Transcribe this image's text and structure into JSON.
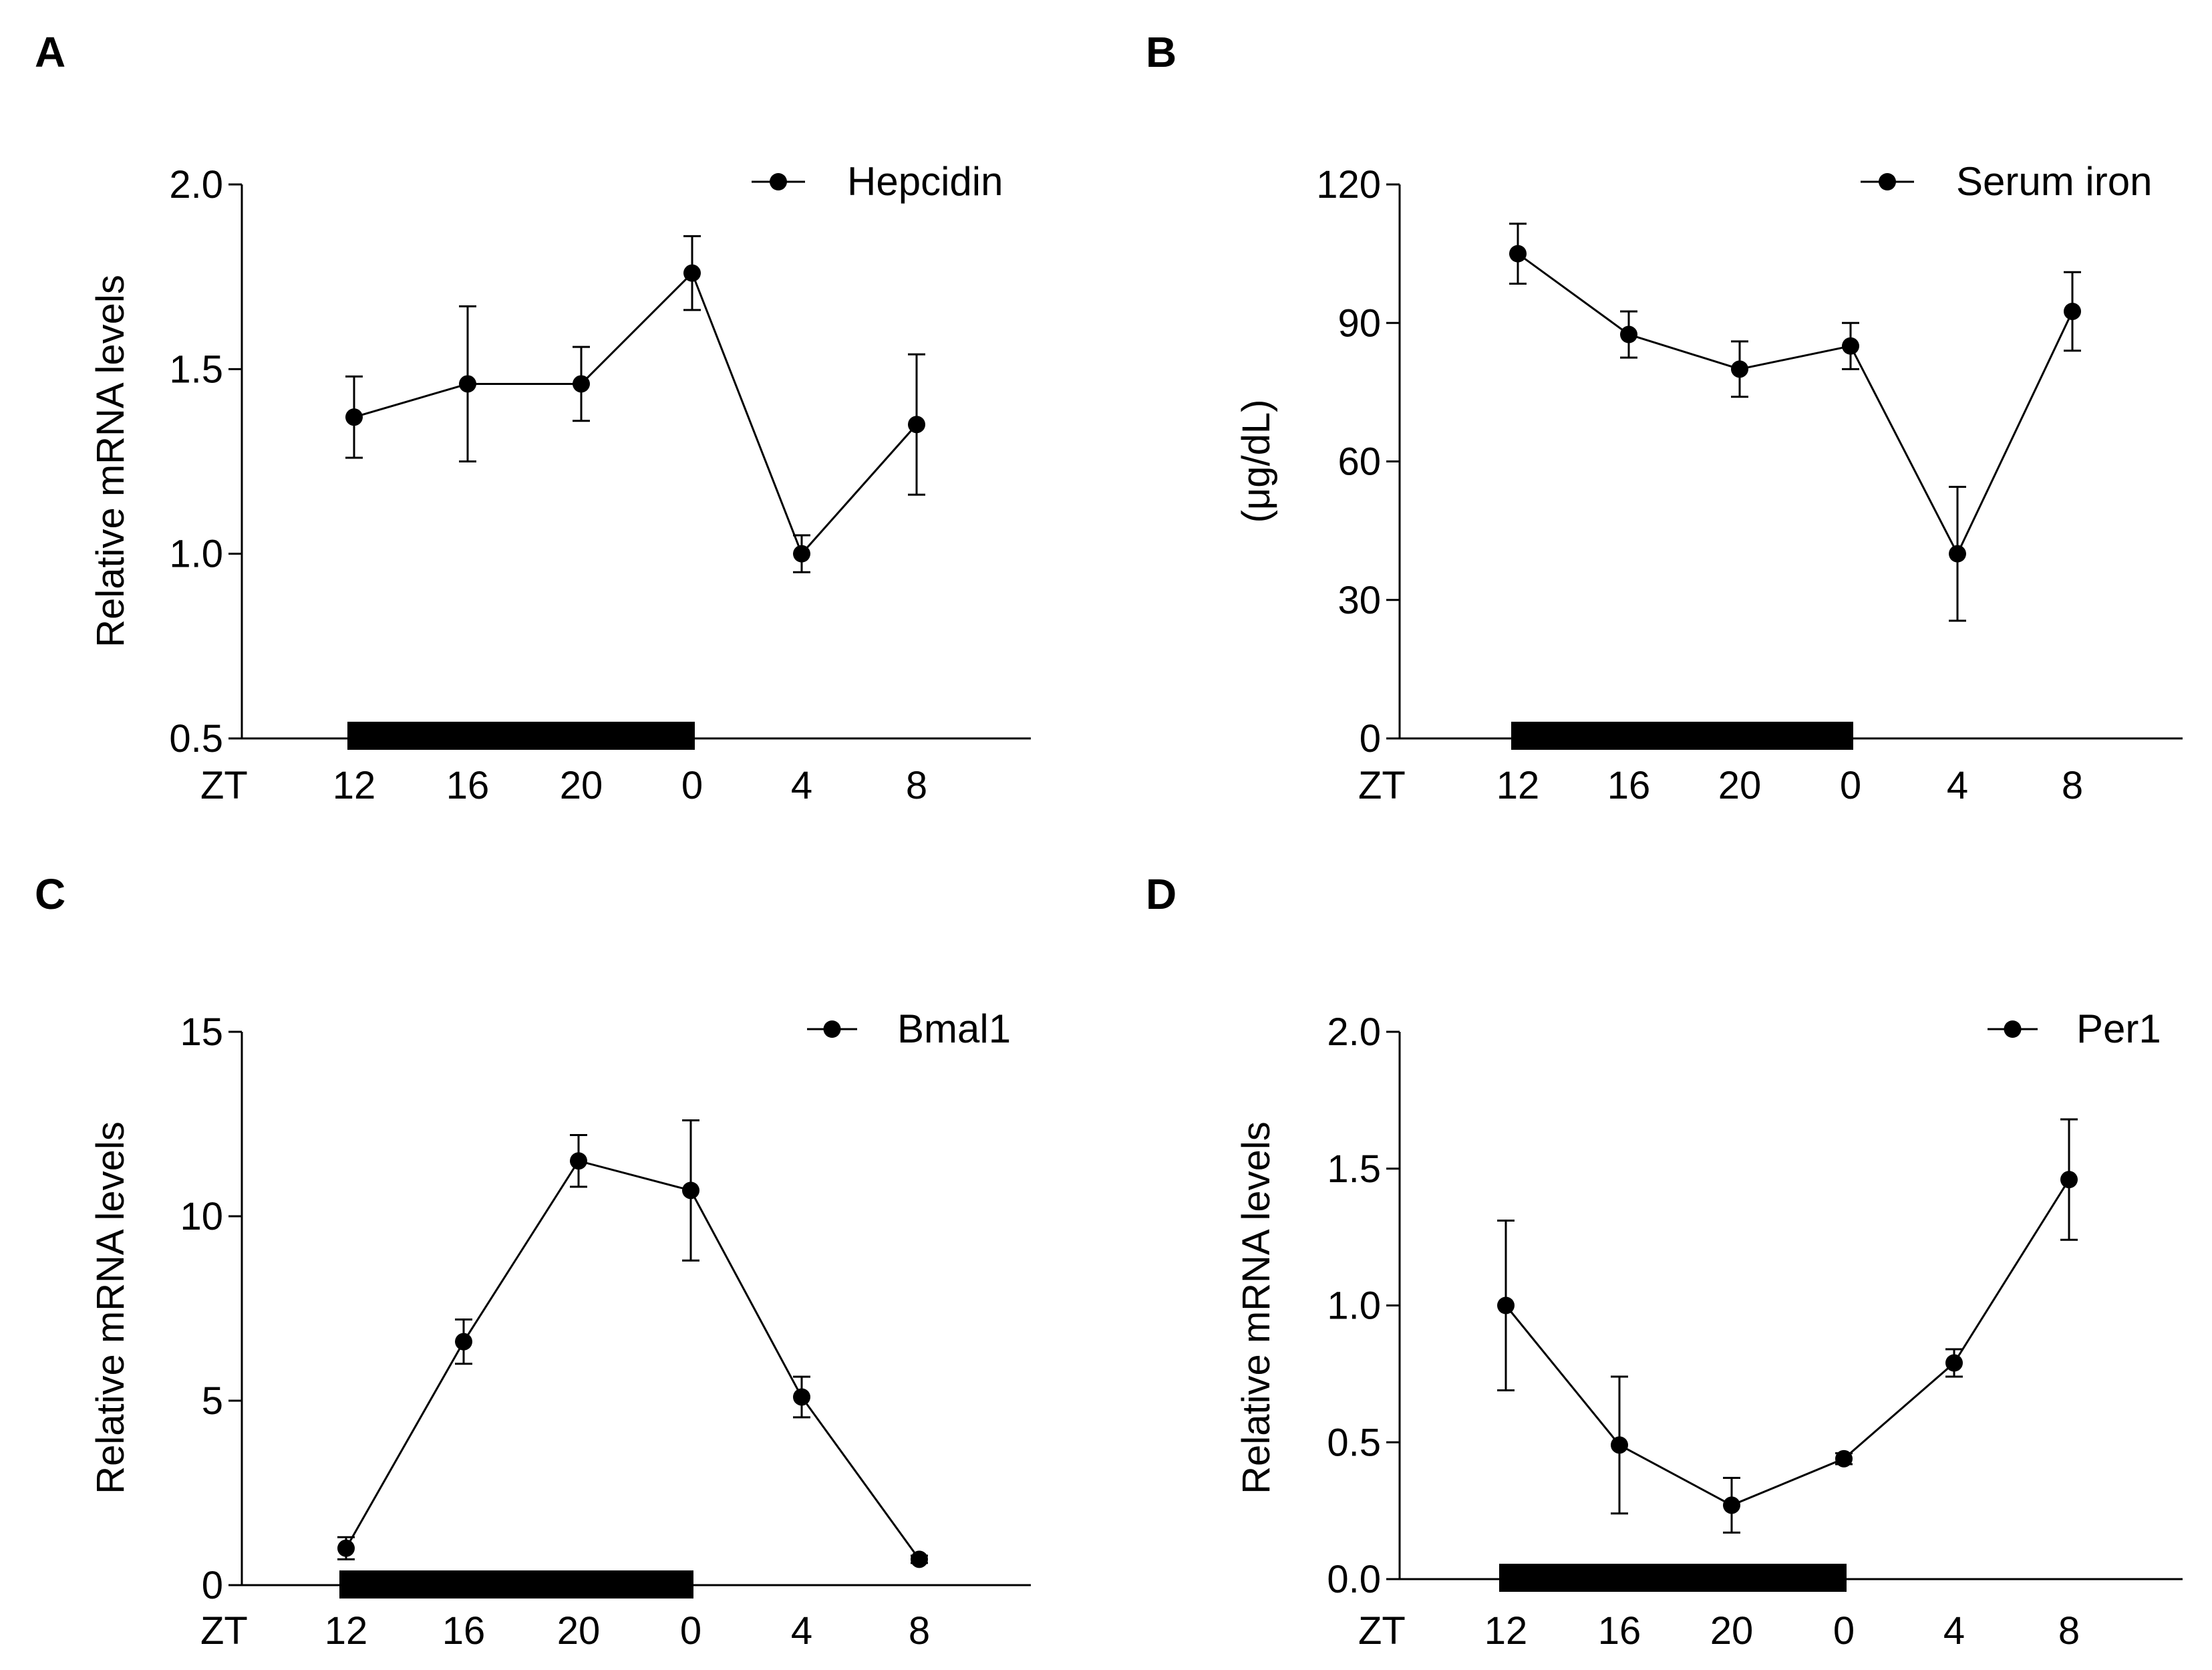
{
  "figure": {
    "zt_label": "ZT",
    "x_categories": [
      "12",
      "16",
      "20",
      "0",
      "4",
      "8"
    ],
    "dark_phase_bar": {
      "from_category": "12",
      "to_category": "0",
      "color": "#000000"
    }
  },
  "chart_data": [
    {
      "panel": "A",
      "type": "line",
      "legend": "Hepcidin",
      "ylabel": "Relative mRNA levels",
      "ylim": [
        0.5,
        2.0
      ],
      "yticks": [
        "0.5",
        "1.0",
        "1.5",
        "2.0"
      ],
      "categories": [
        "12",
        "16",
        "20",
        "0",
        "4",
        "8"
      ],
      "series": [
        {
          "name": "Hepcidin",
          "values": [
            1.37,
            1.46,
            1.46,
            1.76,
            1.0,
            1.35
          ],
          "errors": [
            0.11,
            0.21,
            0.1,
            0.1,
            0.05,
            0.19
          ]
        }
      ]
    },
    {
      "panel": "B",
      "type": "line",
      "legend": "Serum iron",
      "ylabel": "(μg/dL)",
      "ylim": [
        0,
        120
      ],
      "yticks": [
        "0",
        "30",
        "60",
        "90",
        "120"
      ],
      "categories": [
        "12",
        "16",
        "20",
        "0",
        "4",
        "8"
      ],
      "series": [
        {
          "name": "Serum iron",
          "values": [
            105,
            87.5,
            80,
            85,
            40,
            92.5
          ],
          "errors": [
            6.5,
            5,
            6,
            5,
            14.5,
            8.5
          ]
        }
      ]
    },
    {
      "panel": "C",
      "type": "line",
      "legend": "Bmal1",
      "ylabel": "Relative mRNA levels",
      "ylim": [
        0,
        15
      ],
      "yticks": [
        "0",
        "5",
        "10",
        "15"
      ],
      "categories": [
        "12",
        "16",
        "20",
        "0",
        "4",
        "8"
      ],
      "series": [
        {
          "name": "Bmal1",
          "values": [
            1.0,
            6.6,
            11.5,
            10.7,
            5.1,
            0.7
          ],
          "errors": [
            0.3,
            0.6,
            0.7,
            1.9,
            0.55,
            0.1
          ]
        }
      ]
    },
    {
      "panel": "D",
      "type": "line",
      "legend": "Per1",
      "ylabel": "Relative mRNA levels",
      "ylim": [
        0.0,
        2.0
      ],
      "yticks": [
        "0.0",
        "0.5",
        "1.0",
        "1.5",
        "2.0"
      ],
      "categories": [
        "12",
        "16",
        "20",
        "0",
        "4",
        "8"
      ],
      "series": [
        {
          "name": "Per1",
          "values": [
            1.0,
            0.49,
            0.27,
            0.44,
            0.79,
            1.46
          ],
          "errors": [
            0.31,
            0.25,
            0.1,
            0.02,
            0.05,
            0.22
          ]
        }
      ]
    }
  ]
}
